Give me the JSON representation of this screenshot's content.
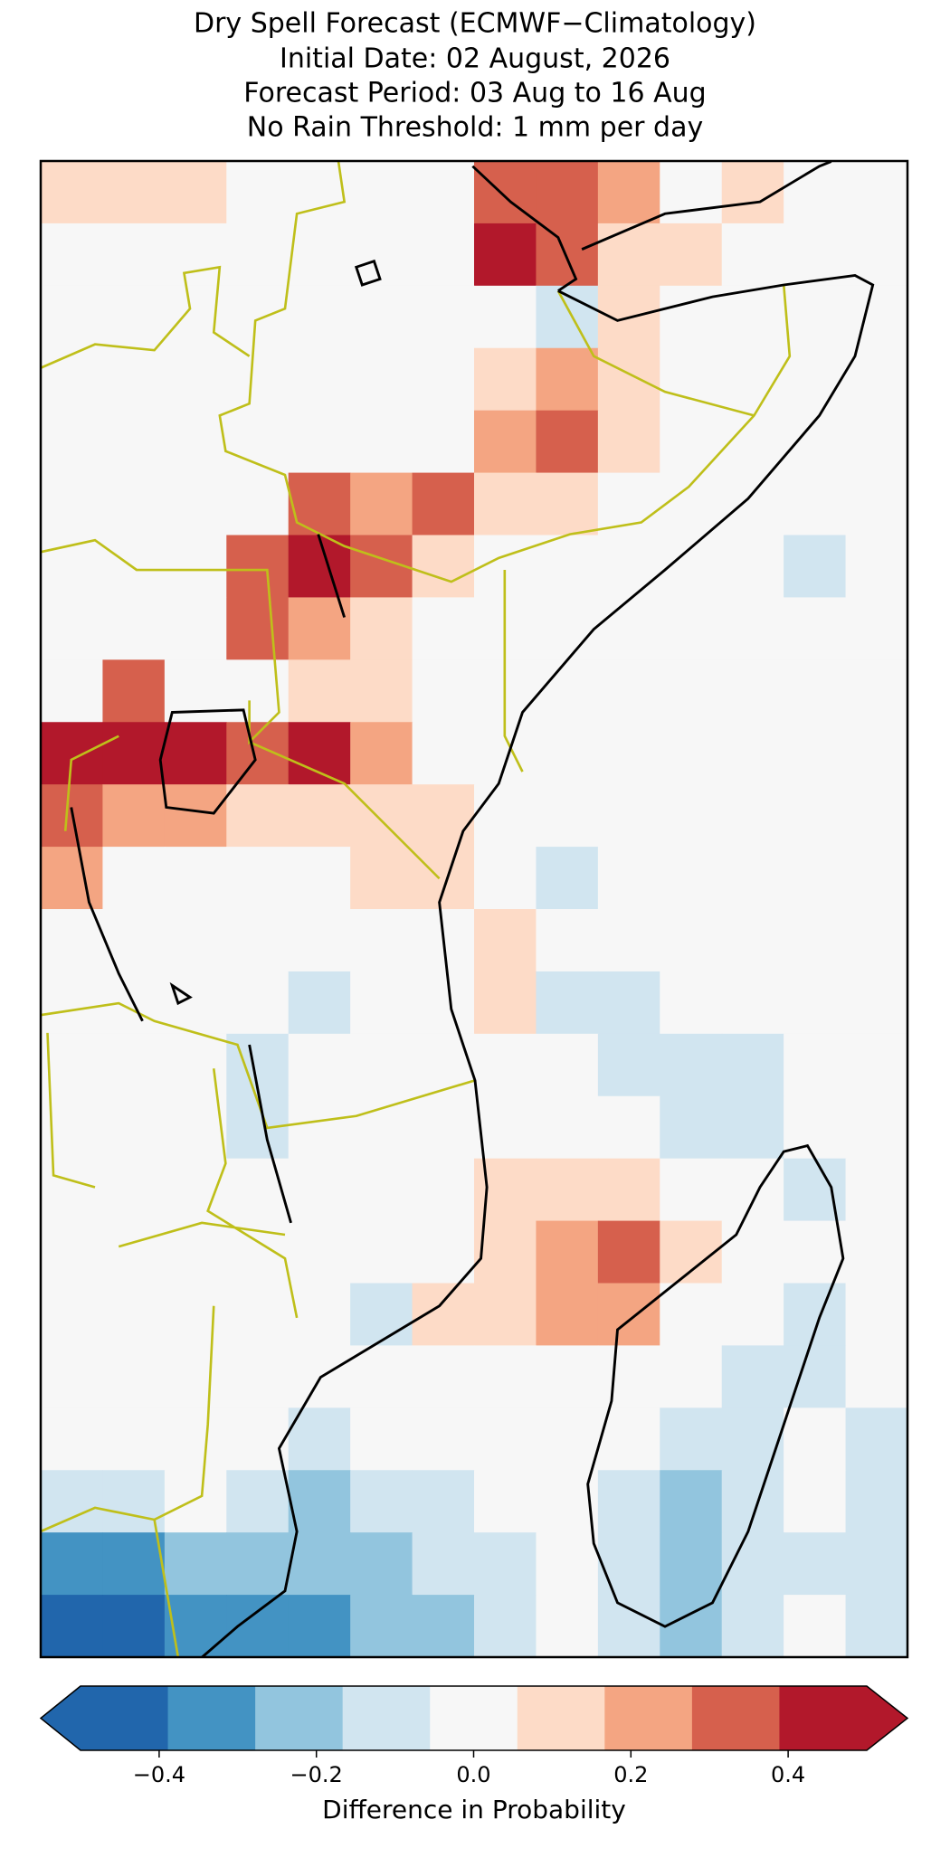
{
  "chart_data": {
    "type": "gridmap",
    "title": [
      "Dry Spell Forecast (ECMWF−Climatology)",
      "Initial Date: 02 August, 2026",
      "Forecast Period: 03 Aug to 16 Aug",
      "No Rain Threshold: 1 mm per day"
    ],
    "grid": [
      [
        0.15,
        0.15,
        0.15,
        0.05,
        0.05,
        0.05,
        0.05,
        0.35,
        0.35,
        0.25,
        0.05,
        0.15,
        0.05,
        0.05
      ],
      [
        0.05,
        -0.05,
        0.05,
        0.05,
        0.05,
        0.05,
        0.05,
        0.45,
        0.35,
        0.15,
        0.15,
        0.05,
        0.05,
        -0.05
      ],
      [
        0.05,
        0.05,
        0.05,
        0.05,
        0.05,
        0.05,
        0.05,
        -0.05,
        -0.15,
        0.15,
        0.05,
        0.05,
        0.05,
        0.05
      ],
      [
        0.05,
        0.05,
        0.05,
        0.05,
        0.05,
        0.05,
        0.05,
        0.15,
        0.25,
        0.15,
        0.05,
        0.05,
        0.05,
        -0.05
      ],
      [
        0.05,
        0.05,
        0.05,
        0.05,
        0.05,
        0.05,
        0.05,
        0.25,
        0.35,
        0.15,
        0.05,
        0.05,
        -0.05,
        -0.05
      ],
      [
        0.05,
        0.05,
        0.05,
        0.05,
        0.35,
        0.25,
        0.35,
        0.15,
        0.15,
        0.05,
        0.05,
        0.05,
        -0.05,
        0.05
      ],
      [
        0.05,
        0.05,
        0.05,
        0.35,
        0.45,
        0.35,
        0.15,
        0.05,
        0.05,
        0.05,
        0.05,
        -0.05,
        -0.15,
        0.05
      ],
      [
        0.05,
        0.05,
        0.05,
        0.35,
        0.25,
        0.15,
        0.05,
        0.05,
        0.05,
        0.05,
        -0.05,
        -0.05,
        -0.05,
        -0.05
      ],
      [
        0.05,
        0.35,
        0.05,
        0.05,
        0.15,
        0.15,
        0.05,
        0.05,
        -0.05,
        -0.05,
        -0.05,
        -0.05,
        -0.05,
        -0.05
      ],
      [
        0.45,
        0.45,
        0.45,
        0.35,
        0.45,
        0.25,
        0.05,
        0.05,
        -0.05,
        -0.05,
        -0.05,
        -0.05,
        -0.05,
        -0.05
      ],
      [
        0.35,
        0.25,
        0.25,
        0.15,
        0.15,
        0.15,
        0.15,
        0.05,
        -0.05,
        -0.05,
        -0.05,
        -0.05,
        -0.05,
        -0.05
      ],
      [
        0.25,
        0.05,
        0.05,
        0.05,
        0.05,
        0.15,
        0.15,
        -0.05,
        -0.15,
        -0.05,
        -0.05,
        -0.05,
        -0.05,
        -0.05
      ],
      [
        0.05,
        0.05,
        0.05,
        0.05,
        0.05,
        0.05,
        0.05,
        0.15,
        -0.05,
        -0.05,
        -0.05,
        -0.05,
        -0.05,
        -0.05
      ],
      [
        0.05,
        0.05,
        -0.05,
        0.05,
        -0.15,
        0.05,
        0.05,
        0.15,
        -0.15,
        -0.15,
        -0.05,
        -0.05,
        -0.05,
        -0.05
      ],
      [
        0.05,
        -0.05,
        0.05,
        -0.15,
        0.05,
        0.05,
        0.05,
        0.05,
        -0.05,
        -0.15,
        -0.15,
        -0.15,
        -0.05,
        -0.05
      ],
      [
        0.05,
        0.05,
        0.05,
        -0.15,
        0.05,
        0.05,
        0.05,
        0.05,
        -0.05,
        -0.05,
        -0.15,
        -0.15,
        -0.05,
        -0.05
      ],
      [
        0.05,
        0.05,
        0.05,
        0.05,
        0.05,
        0.05,
        0.05,
        0.15,
        0.15,
        0.15,
        -0.05,
        -0.05,
        -0.15,
        -0.05
      ],
      [
        0.05,
        0.05,
        0.05,
        0.05,
        0.05,
        0.05,
        0.05,
        0.15,
        0.25,
        0.35,
        0.15,
        -0.05,
        -0.05,
        -0.05
      ],
      [
        0.05,
        0.05,
        0.05,
        0.05,
        -0.05,
        -0.15,
        0.15,
        0.15,
        0.25,
        0.25,
        0.05,
        -0.05,
        -0.15,
        -0.05
      ],
      [
        0.05,
        -0.05,
        0.05,
        0.05,
        0.05,
        0.05,
        0.05,
        0.05,
        0.05,
        0.05,
        0.05,
        -0.15,
        -0.15,
        -0.05
      ],
      [
        -0.05,
        -0.05,
        -0.05,
        -0.05,
        -0.15,
        -0.05,
        -0.05,
        0.05,
        0.05,
        -0.05,
        -0.15,
        -0.15,
        -0.05,
        -0.15
      ],
      [
        -0.15,
        -0.15,
        -0.05,
        -0.15,
        -0.25,
        -0.15,
        -0.15,
        -0.05,
        -0.05,
        -0.15,
        -0.25,
        -0.15,
        -0.05,
        -0.15
      ],
      [
        -0.35,
        -0.35,
        -0.25,
        -0.25,
        -0.25,
        -0.25,
        -0.15,
        -0.15,
        -0.05,
        -0.15,
        -0.25,
        -0.15,
        -0.15,
        -0.15
      ],
      [
        -0.45,
        -0.45,
        -0.35,
        -0.35,
        -0.35,
        -0.25,
        -0.25,
        -0.15,
        -0.05,
        -0.15,
        -0.25,
        -0.15,
        -0.05,
        -0.15
      ]
    ],
    "colors": [
      "#2166ac",
      "#4393c3",
      "#92c5de",
      "#d1e5f0",
      "#f7f7f7",
      "#fddbc7",
      "#f4a582",
      "#d6604d",
      "#b2182b",
      "#b2182b"
    ],
    "clim": [
      -0.5,
      0.5
    ],
    "colorbar_ticks": [
      {
        "value": -0.4,
        "label": "−0.4"
      },
      {
        "value": -0.2,
        "label": "−0.2"
      },
      {
        "value": 0,
        "label": "0.0"
      },
      0.2,
      0.4
    ],
    "colorbar_label": "Difference in Probability"
  }
}
